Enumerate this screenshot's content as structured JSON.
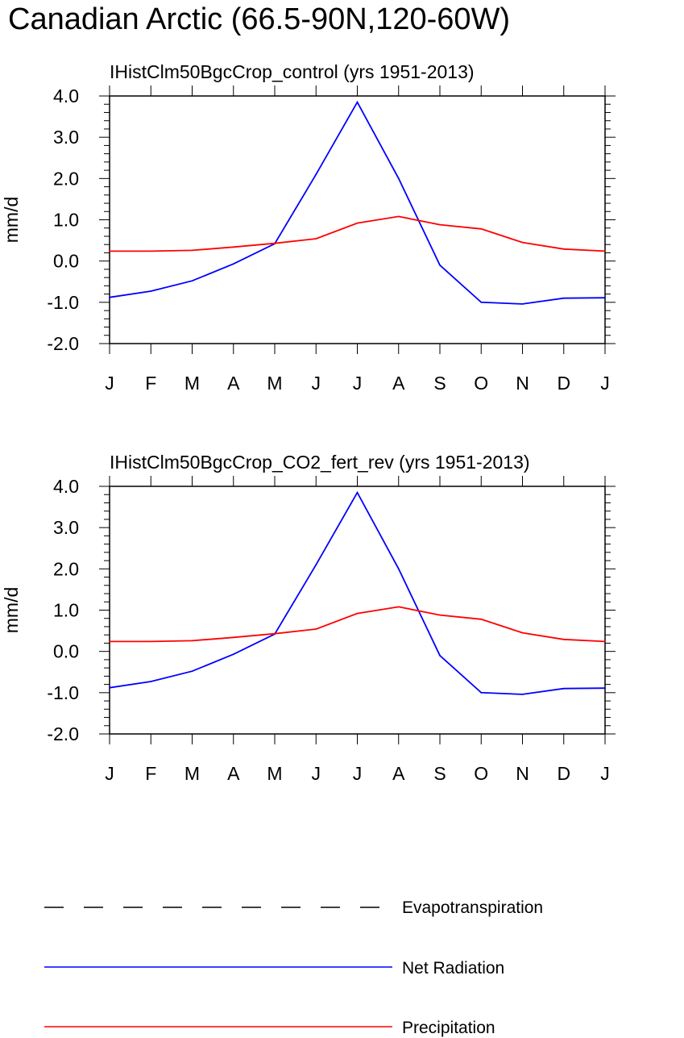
{
  "title": "Canadian Arctic (66.5-90N,120-60W)",
  "colors": {
    "evapotranspiration": "#000000",
    "net_radiation": "#0000ff",
    "precipitation": "#ff0000",
    "axes": "#000000",
    "background": "#ffffff"
  },
  "legend": [
    {
      "name": "Evapotranspiration",
      "color": "#000000",
      "dash": "dashed"
    },
    {
      "name": "Net Radiation",
      "color": "#0000ff",
      "dash": "solid"
    },
    {
      "name": "Precipitation",
      "color": "#ff0000",
      "dash": "solid"
    }
  ],
  "chart_data": [
    {
      "type": "line",
      "title": "IHistClm50BgcCrop_control (yrs 1951-2013)",
      "xlabel": "",
      "ylabel": "mm/d",
      "ylim": [
        -2.0,
        4.0
      ],
      "yticks": [
        "4.0",
        "3.0",
        "2.0",
        "1.0",
        "0.0",
        "-1.0",
        "-2.0"
      ],
      "categories": [
        "J",
        "F",
        "M",
        "A",
        "M",
        "J",
        "J",
        "A",
        "S",
        "O",
        "N",
        "D",
        "J"
      ],
      "grid": false,
      "series": [
        {
          "name": "Net Radiation",
          "color": "#0000ff",
          "values": [
            -0.88,
            -0.73,
            -0.48,
            -0.07,
            0.42,
            2.1,
            3.85,
            2.0,
            -0.1,
            -1.0,
            -1.04,
            -0.9,
            -0.89
          ]
        },
        {
          "name": "Precipitation",
          "color": "#ff0000",
          "values": [
            0.24,
            0.24,
            0.26,
            0.34,
            0.43,
            0.54,
            0.92,
            1.08,
            0.88,
            0.78,
            0.45,
            0.29,
            0.24
          ]
        }
      ]
    },
    {
      "type": "line",
      "title": "IHistClm50BgcCrop_CO2_fert_rev (yrs 1951-2013)",
      "xlabel": "",
      "ylabel": "mm/d",
      "ylim": [
        -2.0,
        4.0
      ],
      "yticks": [
        "4.0",
        "3.0",
        "2.0",
        "1.0",
        "0.0",
        "-1.0",
        "-2.0"
      ],
      "categories": [
        "J",
        "F",
        "M",
        "A",
        "M",
        "J",
        "J",
        "A",
        "S",
        "O",
        "N",
        "D",
        "J"
      ],
      "grid": false,
      "series": [
        {
          "name": "Net Radiation",
          "color": "#0000ff",
          "values": [
            -0.88,
            -0.73,
            -0.48,
            -0.07,
            0.42,
            2.1,
            3.85,
            2.0,
            -0.1,
            -1.0,
            -1.04,
            -0.9,
            -0.89
          ]
        },
        {
          "name": "Precipitation",
          "color": "#ff0000",
          "values": [
            0.24,
            0.24,
            0.26,
            0.34,
            0.43,
            0.54,
            0.92,
            1.08,
            0.88,
            0.78,
            0.45,
            0.29,
            0.24
          ]
        }
      ]
    }
  ]
}
